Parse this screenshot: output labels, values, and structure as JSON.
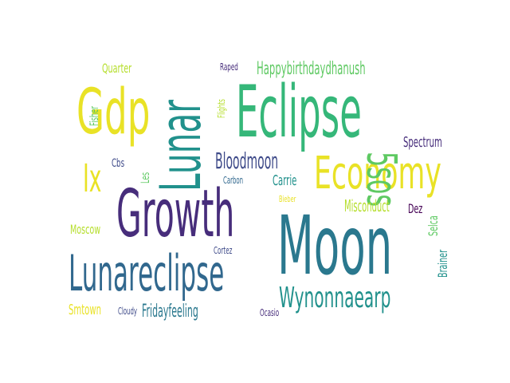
{
  "colors": {
    "background": "#ffffff",
    "yellow": "#e9e226",
    "lime": "#b5de2b",
    "yellowgreen": "#c2df23",
    "green": "#5ec962",
    "teal": "#21918c",
    "teal2": "#2a788e",
    "blue": "#31688e",
    "indigo": "#3e4a89",
    "purple": "#472d7b",
    "darkpurple": "#440154",
    "aqua": "#35b779"
  },
  "words": {
    "eclipse": "Eclipse",
    "moon": "Moon",
    "growth": "Growth",
    "lunar": "Lunar",
    "lunareclipse": "Lunareclipse",
    "economy": "Economy",
    "gdp": "Gdp",
    "wynonnaearp": "Wynonnaearp",
    "bloodmoon": "Bloodmoon",
    "ix": "Ix",
    "happybirthdaydhanush": "Happybirthdaydhanush",
    "sos": "5sos",
    "spectrum": "Spectrum",
    "misconduct": "Misconduct",
    "fridayfeeling": "Fridayfeeling",
    "smtown": "Smtown",
    "quarter": "Quarter",
    "fisher": "Fisher",
    "carrie": "Carrie",
    "moscow": "Moscow",
    "selca": "Selca",
    "brainer": "Brainer",
    "dez": "Dez",
    "cbs": "Cbs",
    "les": "Les",
    "carbon": "Carbon",
    "bieber": "Bieber",
    "cortez": "Cortez",
    "cloudy": "Cloudy",
    "ocasio": "Ocasio",
    "raped": "Raped",
    "flights": "Flights"
  }
}
